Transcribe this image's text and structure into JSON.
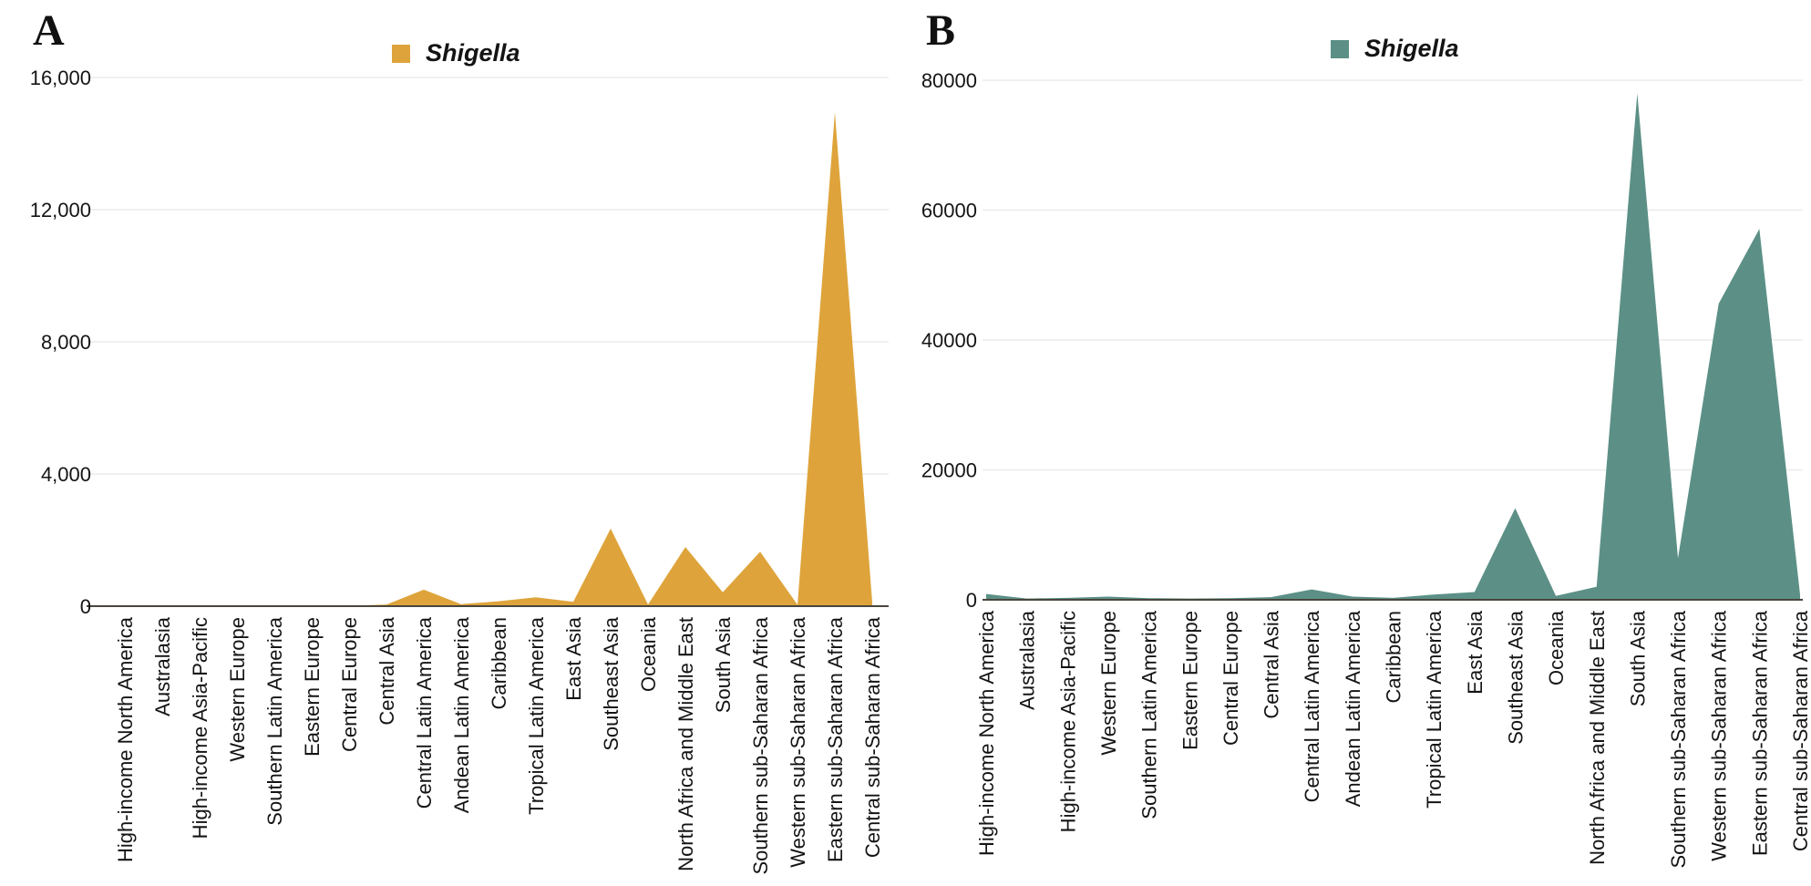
{
  "figure": {
    "background": "#ffffff",
    "text_color": "#141414",
    "gridline_color": "#ececec",
    "baseline_color": "#4a463e"
  },
  "chart_data": [
    {
      "type": "area",
      "panel_label": "A",
      "legend": {
        "label": "Shigella",
        "position": "top-center"
      },
      "series_color": "#DEA43B",
      "grid": "horizontal",
      "ylim": [
        0,
        16000
      ],
      "yticks": [
        0,
        4000,
        8000,
        12000,
        16000
      ],
      "ytick_labels": [
        "0",
        "4,000",
        "8,000",
        "12,000",
        "16,000"
      ],
      "categories": [
        "High-income North America",
        "Australasia",
        "High-income Asia-Pacific",
        "Western Europe",
        "Southern Latin America",
        "Eastern Europe",
        "Central Europe",
        "Central Asia",
        "Central Latin America",
        "Andean Latin America",
        "Caribbean",
        "Tropical Latin America",
        "East Asia",
        "Southeast Asia",
        "Oceania",
        "North Africa and Middle East",
        "South Asia",
        "Southern sub-Saharan Africa",
        "Western sub-Saharan Africa",
        "Eastern sub-Saharan Africa",
        "Central sub-Saharan Africa"
      ],
      "values": [
        10,
        5,
        10,
        10,
        8,
        10,
        15,
        50,
        500,
        60,
        150,
        270,
        130,
        2350,
        50,
        1790,
        420,
        1650,
        40,
        14950,
        120
      ]
    },
    {
      "type": "area",
      "panel_label": "B",
      "legend": {
        "label": "Shigella",
        "position": "top-center"
      },
      "series_color": "#5C9086",
      "grid": "horizontal",
      "ylim": [
        0,
        80000
      ],
      "yticks": [
        0,
        20000,
        40000,
        60000,
        80000
      ],
      "ytick_labels": [
        "0",
        "20000",
        "40000",
        "60000",
        "80000"
      ],
      "categories": [
        "High-income North America",
        "Australasia",
        "High-income Asia-Pacific",
        "Western Europe",
        "Southern Latin America",
        "Eastern Europe",
        "Central Europe",
        "Central Asia",
        "Central Latin America",
        "Andean Latin America",
        "Caribbean",
        "Tropical Latin America",
        "East Asia",
        "Southeast Asia",
        "Oceania",
        "North Africa and Middle East",
        "South Asia",
        "Southern sub-Saharan Africa",
        "Western sub-Saharan Africa",
        "Eastern sub-Saharan Africa",
        "Central sub-Saharan Africa"
      ],
      "values": [
        900,
        200,
        300,
        500,
        250,
        200,
        250,
        400,
        1600,
        500,
        300,
        800,
        1200,
        14100,
        600,
        2000,
        78000,
        6400,
        45600,
        57100,
        800
      ]
    }
  ]
}
